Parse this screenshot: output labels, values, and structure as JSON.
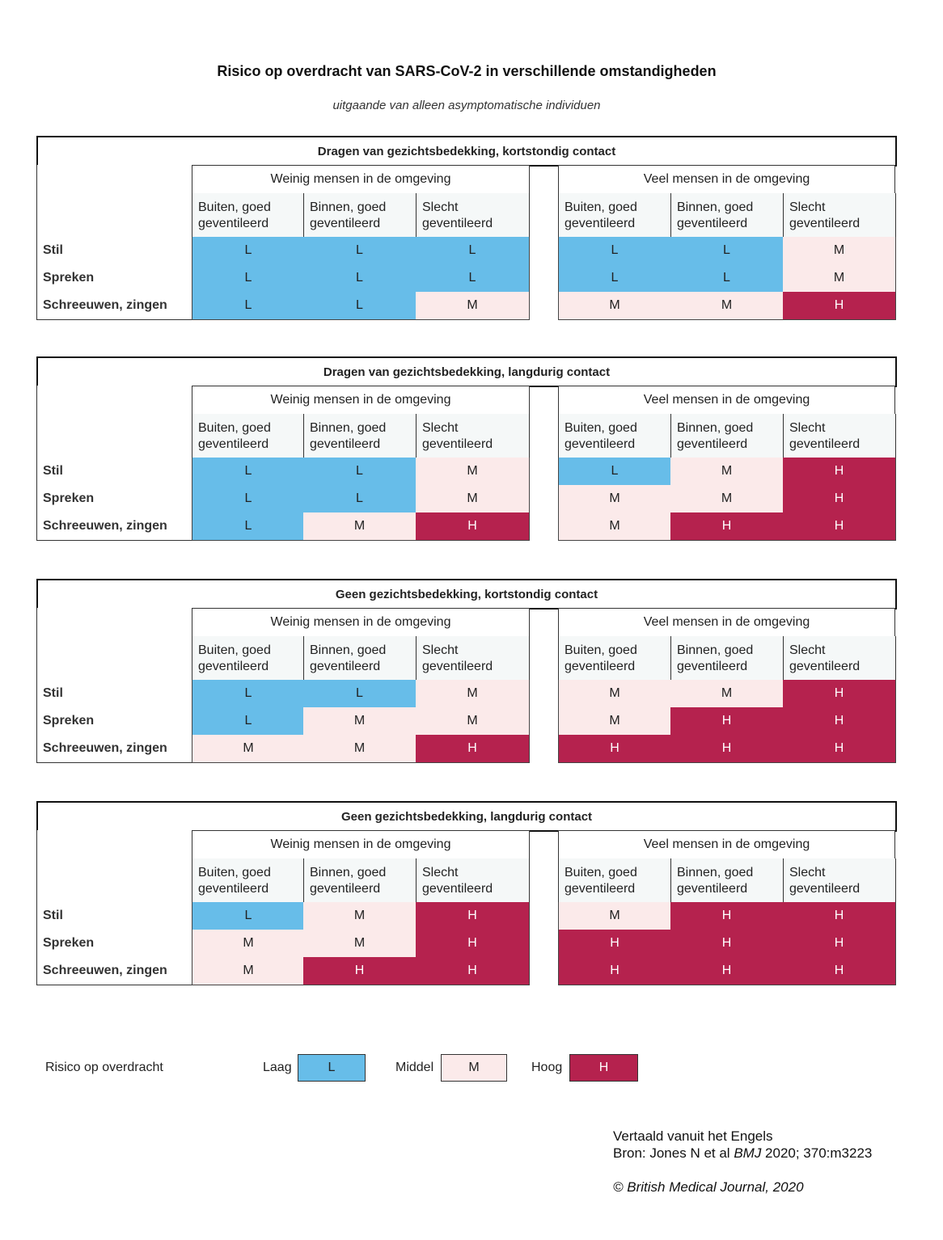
{
  "title": "Risico op overdracht van SARS-CoV-2 in verschillende omstandigheden",
  "subtitle": "uitgaande van alleen asymptomatische individuen",
  "groups": [
    "Weinig mensen in de omgeving",
    "Veel mensen in de omgeving"
  ],
  "columns": [
    "Buiten, goed geventileerd",
    "Binnen, goed geventileerd",
    "Slecht geventileerd"
  ],
  "rows": [
    "Stil",
    "Spreken",
    "Schreeuwen, zingen"
  ],
  "chart_data": {
    "type": "table",
    "tables": [
      {
        "title": "Dragen van gezichtsbedekking, kortstondig contact",
        "values": [
          [
            "L",
            "L",
            "L",
            "L",
            "L",
            "M"
          ],
          [
            "L",
            "L",
            "L",
            "L",
            "L",
            "M"
          ],
          [
            "L",
            "L",
            "M",
            "M",
            "M",
            "H"
          ]
        ]
      },
      {
        "title": "Dragen van gezichtsbedekking, langdurig contact",
        "values": [
          [
            "L",
            "L",
            "M",
            "L",
            "M",
            "H"
          ],
          [
            "L",
            "L",
            "M",
            "M",
            "M",
            "H"
          ],
          [
            "L",
            "M",
            "H",
            "M",
            "H",
            "H"
          ]
        ]
      },
      {
        "title": "Geen gezichtsbedekking, kortstondig contact",
        "values": [
          [
            "L",
            "L",
            "M",
            "M",
            "M",
            "H"
          ],
          [
            "L",
            "M",
            "M",
            "M",
            "H",
            "H"
          ],
          [
            "M",
            "M",
            "H",
            "H",
            "H",
            "H"
          ]
        ]
      },
      {
        "title": "Geen gezichtsbedekking, langdurig contact",
        "values": [
          [
            "L",
            "M",
            "H",
            "M",
            "H",
            "H"
          ],
          [
            "M",
            "M",
            "H",
            "H",
            "H",
            "H"
          ],
          [
            "M",
            "H",
            "H",
            "H",
            "H",
            "H"
          ]
        ]
      }
    ],
    "colors": {
      "L": "#67bde9",
      "M": "#fbeaea",
      "H": "#b5224e"
    }
  },
  "legend": {
    "label": "Risico op overdracht",
    "items": [
      {
        "name": "Laag",
        "code": "L"
      },
      {
        "name": "Middel",
        "code": "M"
      },
      {
        "name": "Hoog",
        "code": "H"
      }
    ]
  },
  "source": {
    "line1": "Vertaald vanuit het Engels",
    "line2_prefix": "Bron: Jones N et al ",
    "line2_journal": "BMJ",
    "line2_suffix": " 2020; 370:m3223",
    "copyright": "© British Medical Journal, 2020"
  }
}
